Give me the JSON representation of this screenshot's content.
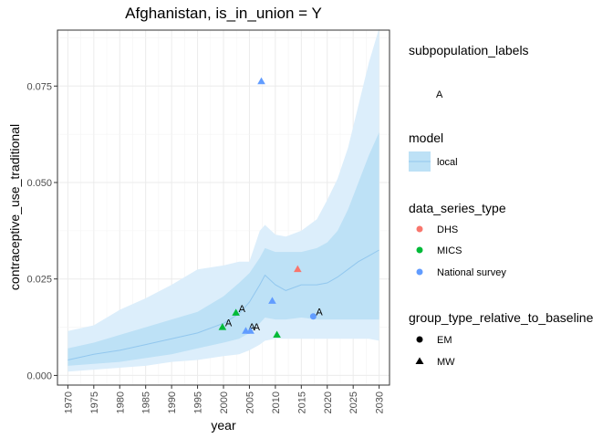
{
  "chart_data": {
    "type": "line",
    "title": "Afghanistan, is_in_union = Y",
    "xlabel": "year",
    "ylabel": "contraceptive_use_traditional",
    "xlim": [
      1968,
      2032
    ],
    "ylim": [
      -0.0025,
      0.0895
    ],
    "x_ticks": [
      1970,
      1975,
      1980,
      1985,
      1990,
      1995,
      2000,
      2005,
      2010,
      2015,
      2020,
      2025,
      2030
    ],
    "y_ticks": [
      0.0,
      0.025,
      0.05,
      0.075
    ],
    "y_tick_labels": [
      "0.000",
      "0.025",
      "0.050",
      "0.075"
    ],
    "grid": true,
    "model_band": {
      "name": "local",
      "x": [
        1970,
        1975,
        1980,
        1985,
        1990,
        1995,
        2000,
        2003,
        2005,
        2007,
        2008,
        2010,
        2012,
        2015,
        2018,
        2020,
        2022,
        2024,
        2026,
        2028,
        2030
      ],
      "median": [
        0.004,
        0.0055,
        0.0065,
        0.008,
        0.0095,
        0.011,
        0.0135,
        0.016,
        0.019,
        0.0235,
        0.026,
        0.0235,
        0.022,
        0.0235,
        0.0235,
        0.024,
        0.0255,
        0.0275,
        0.0295,
        0.031,
        0.0325
      ],
      "inner_lower": [
        0.0025,
        0.003,
        0.0035,
        0.0045,
        0.0055,
        0.007,
        0.0085,
        0.0095,
        0.011,
        0.0135,
        0.015,
        0.0145,
        0.0145,
        0.015,
        0.0145,
        0.0145,
        0.0145,
        0.0145,
        0.0145,
        0.0145,
        0.0145
      ],
      "inner_upper": [
        0.007,
        0.0085,
        0.0105,
        0.0125,
        0.0145,
        0.0165,
        0.0205,
        0.024,
        0.0265,
        0.0305,
        0.033,
        0.032,
        0.032,
        0.032,
        0.033,
        0.0345,
        0.0375,
        0.043,
        0.05,
        0.057,
        0.063
      ],
      "outer_lower": [
        0.001,
        0.0015,
        0.002,
        0.0025,
        0.0035,
        0.004,
        0.005,
        0.0055,
        0.0065,
        0.008,
        0.009,
        0.0095,
        0.0095,
        0.0095,
        0.0095,
        0.0095,
        0.0095,
        0.0095,
        0.0095,
        0.0095,
        0.009
      ],
      "outer_upper": [
        0.0115,
        0.013,
        0.017,
        0.02,
        0.0235,
        0.0275,
        0.0285,
        0.0295,
        0.0295,
        0.0375,
        0.039,
        0.0365,
        0.036,
        0.0375,
        0.0405,
        0.0455,
        0.051,
        0.059,
        0.07,
        0.081,
        0.09
      ]
    },
    "points": [
      {
        "x": 1999.8,
        "y": 0.0125,
        "series": "MICS",
        "group": "MW",
        "label": "A"
      },
      {
        "x": 2002.4,
        "y": 0.0162,
        "series": "MICS",
        "group": "MW",
        "label": "A"
      },
      {
        "x": 2004.3,
        "y": 0.0115,
        "series": "National survey",
        "group": "MW",
        "label": "A"
      },
      {
        "x": 2005.2,
        "y": 0.0115,
        "series": "National survey",
        "group": "MW",
        "label": "A"
      },
      {
        "x": 2007.3,
        "y": 0.0762,
        "series": "National survey",
        "group": "MW",
        "label": ""
      },
      {
        "x": 2009.4,
        "y": 0.0193,
        "series": "National survey",
        "group": "MW",
        "label": ""
      },
      {
        "x": 2010.3,
        "y": 0.0105,
        "series": "MICS",
        "group": "MW",
        "label": ""
      },
      {
        "x": 2014.3,
        "y": 0.0275,
        "series": "DHS",
        "group": "MW",
        "label": ""
      },
      {
        "x": 2017.3,
        "y": 0.0153,
        "series": "National survey",
        "group": "EM",
        "label": "A"
      }
    ],
    "colors": {
      "DHS": "#F8766D",
      "MICS": "#00BA38",
      "National survey": "#619CFF",
      "band_outer": "#DCEEFB",
      "band_inner": "#BDE1F6",
      "median_line": "#92C7EE"
    },
    "legend": {
      "placement": "right",
      "subpopulation": {
        "title": "subpopulation_labels",
        "items": [
          "A"
        ]
      },
      "model": {
        "title": "model",
        "items": [
          "local"
        ]
      },
      "series": {
        "title": "data_series_type",
        "items": [
          "DHS",
          "MICS",
          "National survey"
        ]
      },
      "group": {
        "title": "group_type_relative_to_baseline",
        "items": [
          "EM",
          "MW"
        ],
        "shapes": [
          "circle",
          "triangle"
        ]
      }
    }
  }
}
